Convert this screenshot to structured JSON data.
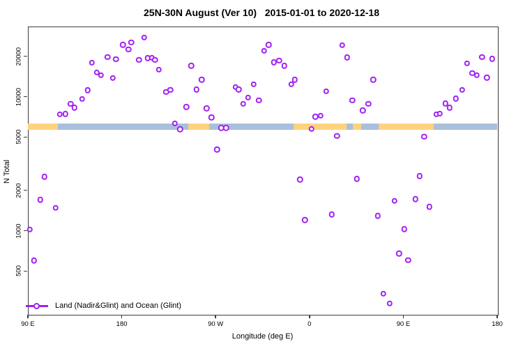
{
  "chart_data": {
    "type": "scatter",
    "title": "25N-30N August (Ver 10)   2015-01-01 to 2020-12-18",
    "x_label": "Longitude (deg E)",
    "y_label": "N Total",
    "legend_label": "Land (Nadir&Glint) and Ocean (Glint)",
    "x_axis": {
      "note": "longitude axis wraps eastward starting at 90E; positions in axis degrees 90..540",
      "range": [
        90,
        540
      ],
      "ticks": [
        {
          "pos": 90,
          "label": "90 E"
        },
        {
          "pos": 180,
          "label": "180"
        },
        {
          "pos": 270,
          "label": "90 W"
        },
        {
          "pos": 360,
          "label": "0"
        },
        {
          "pos": 450,
          "label": "90 E"
        },
        {
          "pos": 540,
          "label": "180"
        }
      ]
    },
    "y_axis": {
      "scale": "log10",
      "range": [
        230,
        33000
      ],
      "ticks": [
        500,
        1000,
        2000,
        5000,
        10000,
        20000
      ]
    },
    "colors": {
      "marker": "#a020f0",
      "land_band": "#ffd27e",
      "ocean_band": "#a9c0dc",
      "frame": "#3c3c3c"
    },
    "surface_band": {
      "value_at": 6200,
      "segments": [
        {
          "from": 90,
          "to": 118.5,
          "type": "land"
        },
        {
          "from": 118.5,
          "to": 243.5,
          "type": "ocean"
        },
        {
          "from": 243.5,
          "to": 264,
          "type": "land"
        },
        {
          "from": 264,
          "to": 345,
          "type": "ocean"
        },
        {
          "from": 345,
          "to": 395.5,
          "type": "land"
        },
        {
          "from": 395.5,
          "to": 401.5,
          "type": "ocean"
        },
        {
          "from": 401.5,
          "to": 409.5,
          "type": "land"
        },
        {
          "from": 409.5,
          "to": 426,
          "type": "ocean"
        },
        {
          "from": 426,
          "to": 479,
          "type": "land"
        },
        {
          "from": 479,
          "to": 540,
          "type": "ocean"
        }
      ]
    },
    "points": [
      [
        92,
        1020
      ],
      [
        96,
        598
      ],
      [
        102,
        1700
      ],
      [
        106,
        2530
      ],
      [
        116.5,
        1480
      ],
      [
        120.5,
        7390
      ],
      [
        126,
        7450
      ],
      [
        131,
        8850
      ],
      [
        134.5,
        8270
      ],
      [
        142,
        9620
      ],
      [
        147.5,
        11170
      ],
      [
        151.5,
        17890
      ],
      [
        156,
        15130
      ],
      [
        160,
        14470
      ],
      [
        166.5,
        19770
      ],
      [
        171.5,
        13790
      ],
      [
        174.5,
        19000
      ],
      [
        181,
        24430
      ],
      [
        186.5,
        22550
      ],
      [
        189,
        25420
      ],
      [
        196.5,
        18830
      ],
      [
        201.5,
        27550
      ],
      [
        205,
        19390
      ],
      [
        209,
        19550
      ],
      [
        212,
        18870
      ],
      [
        215.5,
        15870
      ],
      [
        222.5,
        10850
      ],
      [
        226.5,
        11250
      ],
      [
        231,
        6325
      ],
      [
        236,
        5725
      ],
      [
        242,
        8370
      ],
      [
        246.5,
        17050
      ],
      [
        251.5,
        11340
      ],
      [
        256.5,
        13410
      ],
      [
        261.5,
        8200
      ],
      [
        266,
        7000
      ],
      [
        271.5,
        4040
      ],
      [
        275.5,
        5840
      ],
      [
        280,
        5840
      ],
      [
        289,
        11800
      ],
      [
        292,
        11340
      ],
      [
        296.5,
        8820
      ],
      [
        301,
        9860
      ],
      [
        306.5,
        12340
      ],
      [
        311.5,
        9390
      ],
      [
        316.5,
        22020
      ],
      [
        321,
        24350
      ],
      [
        326,
        18040
      ],
      [
        331,
        18620
      ],
      [
        336,
        16990
      ],
      [
        342.5,
        12340
      ],
      [
        346,
        13410
      ],
      [
        351,
        2400
      ],
      [
        355.5,
        1200
      ],
      [
        362,
        5750
      ],
      [
        365.5,
        7100
      ],
      [
        370.5,
        7220
      ],
      [
        376,
        10980
      ],
      [
        381.5,
        1320
      ],
      [
        386.5,
        5100
      ],
      [
        391.5,
        24230
      ],
      [
        396,
        19680
      ],
      [
        401,
        9390
      ],
      [
        405.5,
        2430
      ],
      [
        411,
        7910
      ],
      [
        416.5,
        8850
      ],
      [
        421,
        13390
      ],
      [
        425.5,
        1290
      ],
      [
        431,
        338
      ],
      [
        437,
        287
      ],
      [
        441.5,
        1670
      ],
      [
        446,
        675
      ],
      [
        451,
        1030
      ],
      [
        454.5,
        603
      ],
      [
        461.5,
        1720
      ],
      [
        465.5,
        2560
      ],
      [
        470,
        5020
      ],
      [
        475,
        1510
      ],
      [
        481.5,
        7390
      ],
      [
        485,
        7480
      ],
      [
        490.5,
        8870
      ],
      [
        494.5,
        8260
      ],
      [
        500.5,
        9690
      ],
      [
        506.5,
        11250
      ],
      [
        511,
        17750
      ],
      [
        516,
        15000
      ],
      [
        520.5,
        14470
      ],
      [
        525.5,
        19770
      ],
      [
        530,
        13850
      ],
      [
        535,
        19150
      ]
    ]
  }
}
